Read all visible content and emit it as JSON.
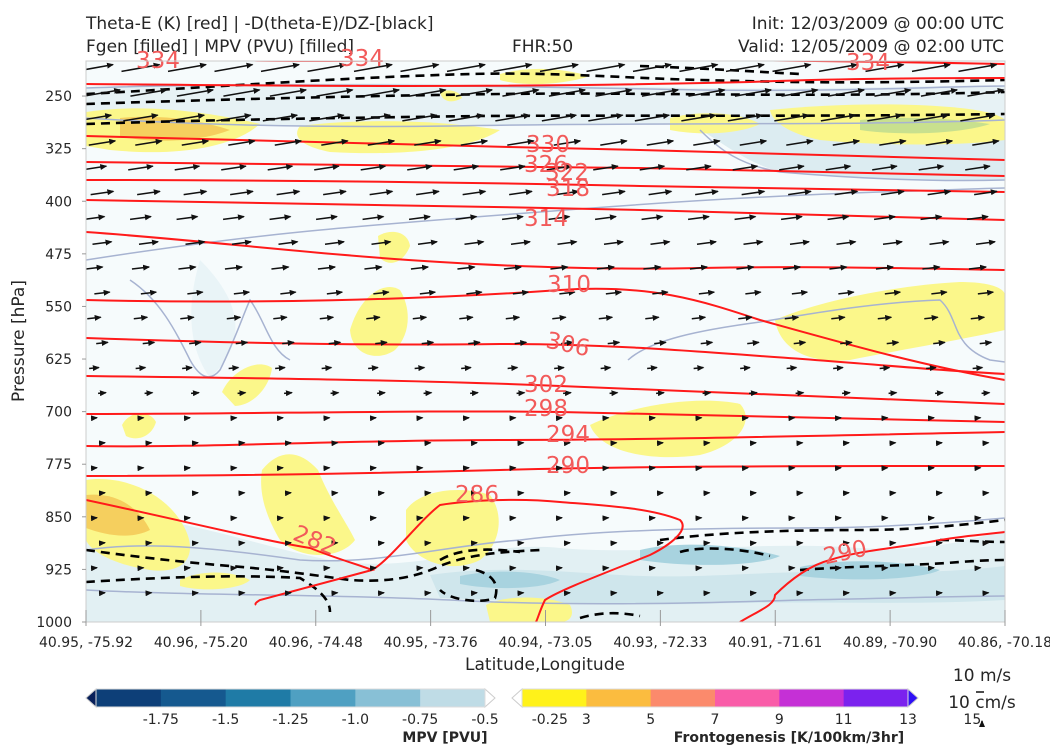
{
  "header": {
    "title_line1": "Theta-E (K) [red] | -D(theta-E)/DZ-[black]",
    "title_line2": "Fgen [filled] | MPV (PVU) [filled]",
    "fhr": "FHR:50",
    "init": "Init: 12/03/2009 @ 00:00 UTC",
    "valid": "Valid: 12/05/2009 @ 02:00 UTC"
  },
  "chart_data": {
    "type": "cross-section",
    "xlabel": "Latitude,Longitude",
    "ylabel": "Pressure [hPa]",
    "x_ticks": [
      "40.95, -75.92",
      "40.96, -75.20",
      "40.96, -74.48",
      "40.95, -73.76",
      "40.94, -73.05",
      "40.93, -72.33",
      "40.91, -71.61",
      "40.89, -70.90",
      "40.86, -70.18"
    ],
    "y_ticks": [
      250,
      325,
      400,
      475,
      550,
      625,
      700,
      775,
      850,
      925,
      1000
    ],
    "ylim": [
      200,
      1000
    ],
    "y_inverted": true,
    "theta_e_labels": [
      {
        "value": "334"
      },
      {
        "value": "334"
      },
      {
        "value": "334"
      },
      {
        "value": "330"
      },
      {
        "value": "326"
      },
      {
        "value": "322"
      },
      {
        "value": "318"
      },
      {
        "value": "314"
      },
      {
        "value": "310"
      },
      {
        "value": "306"
      },
      {
        "value": "302"
      },
      {
        "value": "298"
      },
      {
        "value": "294"
      },
      {
        "value": "290"
      },
      {
        "value": "286"
      },
      {
        "value": "282"
      },
      {
        "value": "290"
      }
    ],
    "wind_reference": {
      "horizontal": "10 m/s",
      "vertical": "10 cm/s"
    },
    "mpv_colorbar": {
      "label": "MPV [PVU]",
      "ticks": [
        "-1.75",
        "-1.5",
        "-1.25",
        "-1.0",
        "-0.75",
        "-0.5",
        "-0.25"
      ],
      "colors": [
        "#08205a",
        "#0d3f78",
        "#15598f",
        "#1f7ba6",
        "#4fa0c2",
        "#88c0d6",
        "#bfdce6",
        "#ffffff"
      ]
    },
    "fgen_colorbar": {
      "label": "Frontogenesis [K/100km/3hr]",
      "ticks": [
        "3",
        "5",
        "7",
        "9",
        "11",
        "13",
        "15"
      ],
      "colors": [
        "#ffffff",
        "#fff21a",
        "#fbbc3f",
        "#fb8a6c",
        "#f95ca8",
        "#c530d6",
        "#7b22ee",
        "#2f10f5"
      ]
    },
    "colors": {
      "theta_e": "#ff1a1a",
      "label": "#f25a5a",
      "dtheta": "#000000",
      "mpv_line": "#a7b3d1",
      "fgen_fill": "#fbf78a"
    }
  }
}
